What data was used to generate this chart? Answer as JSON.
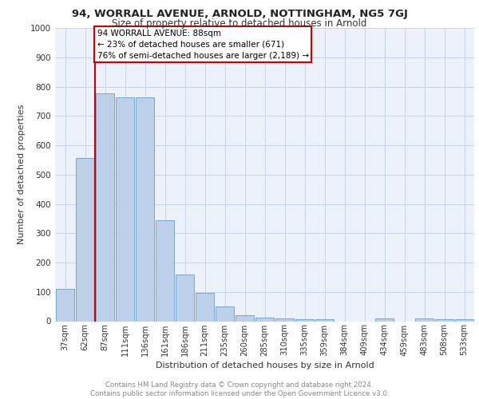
{
  "title1": "94, WORRALL AVENUE, ARNOLD, NOTTINGHAM, NG5 7GJ",
  "title2": "Size of property relative to detached houses in Arnold",
  "xlabel": "Distribution of detached houses by size in Arnold",
  "ylabel": "Number of detached properties",
  "categories": [
    "37sqm",
    "62sqm",
    "87sqm",
    "111sqm",
    "136sqm",
    "161sqm",
    "186sqm",
    "211sqm",
    "235sqm",
    "260sqm",
    "285sqm",
    "310sqm",
    "335sqm",
    "359sqm",
    "384sqm",
    "409sqm",
    "434sqm",
    "459sqm",
    "483sqm",
    "508sqm",
    "533sqm"
  ],
  "values": [
    110,
    557,
    778,
    762,
    762,
    345,
    160,
    96,
    50,
    20,
    13,
    10,
    8,
    8,
    0,
    0,
    10,
    0,
    10,
    8,
    8
  ],
  "bar_color": "#bdd0e9",
  "bar_edge_color": "#7ba7cc",
  "vline_color": "#cc0000",
  "annotation_lines": [
    "94 WORRALL AVENUE: 88sqm",
    "← 23% of detached houses are smaller (671)",
    "76% of semi-detached houses are larger (2,189) →"
  ],
  "annotation_box_facecolor": "#ffffff",
  "annotation_box_edgecolor": "#cc0000",
  "grid_color": "#c8d4e8",
  "background_color": "#edf2fa",
  "footer_text": "Contains HM Land Registry data © Crown copyright and database right 2024.\nContains public sector information licensed under the Open Government Licence v3.0.",
  "ylim": [
    0,
    1000
  ],
  "yticks": [
    0,
    100,
    200,
    300,
    400,
    500,
    600,
    700,
    800,
    900,
    1000
  ]
}
